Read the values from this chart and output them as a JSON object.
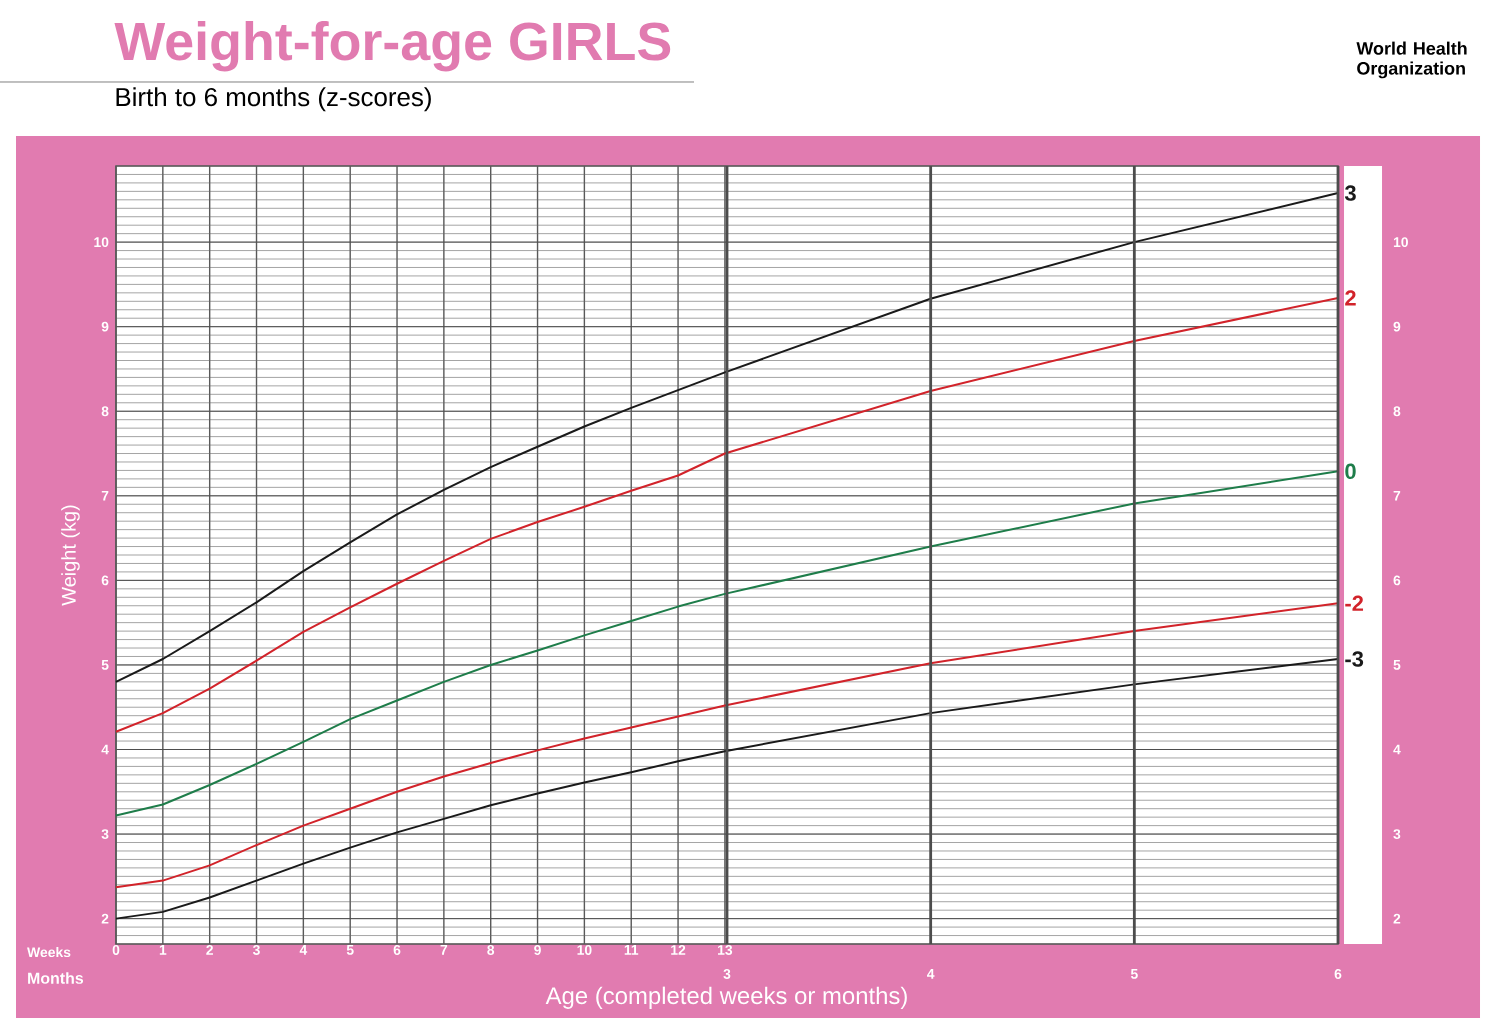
{
  "chart_data": {
    "type": "line",
    "title": "Weight-for-age GIRLS",
    "subtitle": "Birth to 6 months (z-scores)",
    "xlabel": "Age (completed weeks or months)",
    "ylabel": "Weight (kg)",
    "annotations": [
      "Weeks",
      "Months",
      "World Health Organization"
    ],
    "x": [
      0,
      1,
      2,
      3,
      4,
      5,
      6,
      7,
      8,
      9,
      10,
      11,
      12,
      13,
      17.39,
      21.74,
      26.09
    ],
    "series": [
      {
        "name": "-3",
        "color": "#1a1a1a",
        "values": [
          2.0,
          2.08,
          2.25,
          2.45,
          2.65,
          2.84,
          3.02,
          3.18,
          3.34,
          3.48,
          3.61,
          3.73,
          3.86,
          3.98,
          4.43,
          4.77,
          5.07
        ]
      },
      {
        "name": "-2",
        "color": "#d2232a",
        "values": [
          2.37,
          2.45,
          2.63,
          2.87,
          3.1,
          3.3,
          3.5,
          3.68,
          3.84,
          3.99,
          4.13,
          4.26,
          4.39,
          4.52,
          5.02,
          5.4,
          5.73
        ]
      },
      {
        "name": "0",
        "color": "#1e7d4a",
        "values": [
          3.22,
          3.35,
          3.58,
          3.83,
          4.09,
          4.36,
          4.58,
          4.8,
          5.0,
          5.17,
          5.35,
          5.52,
          5.69,
          5.84,
          6.4,
          6.91,
          7.29
        ]
      },
      {
        "name": "2",
        "color": "#d2232a",
        "values": [
          4.21,
          4.43,
          4.72,
          5.05,
          5.39,
          5.68,
          5.96,
          6.23,
          6.49,
          6.69,
          6.87,
          7.06,
          7.24,
          7.5,
          8.24,
          8.83,
          9.34
        ]
      },
      {
        "name": "3",
        "color": "#1a1a1a",
        "values": [
          4.8,
          5.07,
          5.4,
          5.74,
          6.11,
          6.45,
          6.78,
          7.07,
          7.34,
          7.58,
          7.82,
          8.04,
          8.25,
          8.46,
          9.33,
          10.0,
          10.58
        ]
      }
    ],
    "xlim": [
      0,
      26.09
    ],
    "xticks": [
      0,
      1,
      2,
      3,
      4,
      5,
      6,
      7,
      8,
      9,
      10,
      11,
      12,
      13
    ],
    "x2lim": [
      0,
      6
    ],
    "x2ticks": [
      3,
      4,
      5,
      6
    ],
    "ylim": [
      1.7,
      10.9
    ],
    "yticks": [
      2,
      3,
      4,
      5,
      6,
      7,
      8,
      9,
      10
    ],
    "y2lim": [
      1.7,
      10.9
    ],
    "y2ticks": [
      2,
      3,
      4,
      5,
      6,
      7,
      8,
      9,
      10
    ],
    "grid": true,
    "line_style": "solid"
  }
}
